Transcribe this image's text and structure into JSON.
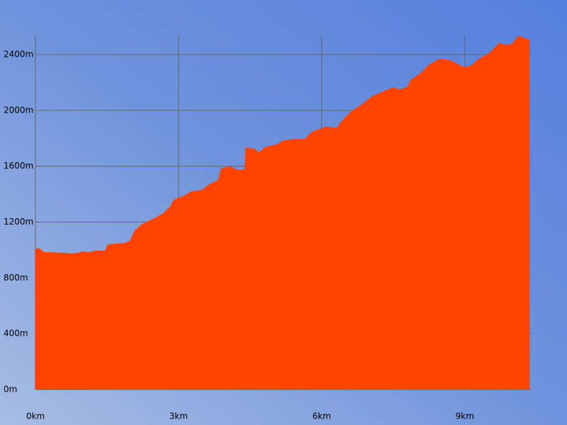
{
  "chart_data": {
    "type": "area",
    "color": "#ff4400",
    "grid": true,
    "x": [
      0,
      0.07,
      0.18,
      0.59,
      0.74,
      0.89,
      0.97,
      1.11,
      1.26,
      1.46,
      1.51,
      1.86,
      1.98,
      2.08,
      2.23,
      2.45,
      2.67,
      2.82,
      2.9,
      3.12,
      3.27,
      3.49,
      3.64,
      3.83,
      3.89,
      4.08,
      4.23,
      4.38,
      4.41,
      4.6,
      4.68,
      4.83,
      5.05,
      5.2,
      5.42,
      5.64,
      5.79,
      6.09,
      6.31,
      6.46,
      6.61,
      6.83,
      7.05,
      7.28,
      7.5,
      7.65,
      7.8,
      7.87,
      8.09,
      8.24,
      8.47,
      8.69,
      8.99,
      9.13,
      9.28,
      9.51,
      9.73,
      9.83,
      9.98,
      10.13,
      10.36
    ],
    "values": [
      1005,
      1015,
      985,
      980,
      975,
      980,
      990,
      985,
      995,
      995,
      1040,
      1050,
      1065,
      1140,
      1185,
      1220,
      1260,
      1310,
      1360,
      1390,
      1420,
      1430,
      1470,
      1500,
      1585,
      1600,
      1575,
      1575,
      1735,
      1725,
      1700,
      1740,
      1755,
      1785,
      1795,
      1795,
      1845,
      1885,
      1875,
      1940,
      1990,
      2040,
      2100,
      2135,
      2165,
      2150,
      2170,
      2220,
      2270,
      2325,
      2370,
      2360,
      2310,
      2320,
      2365,
      2410,
      2485,
      2470,
      2475,
      2535,
      2505
    ],
    "xlim": [
      0,
      10.4
    ],
    "ylim": [
      0,
      2537
    ],
    "xticks": [
      {
        "value": 0,
        "label": "0km"
      },
      {
        "value": 3,
        "label": "3km"
      },
      {
        "value": 6,
        "label": "6km"
      },
      {
        "value": 9,
        "label": "9km"
      }
    ],
    "yticks": [
      {
        "value": 0,
        "label": "0m"
      },
      {
        "value": 400,
        "label": "400m"
      },
      {
        "value": 800,
        "label": "800m"
      },
      {
        "value": 1200,
        "label": "1200m"
      },
      {
        "value": 1600,
        "label": "1600m"
      },
      {
        "value": 2000,
        "label": "2000m"
      },
      {
        "value": 2400,
        "label": "2400m"
      }
    ]
  }
}
